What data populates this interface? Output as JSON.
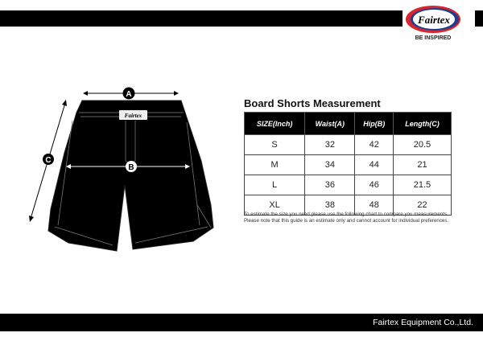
{
  "brand": {
    "logo_text": "Fairtex",
    "tagline": "BE INSPIRED",
    "colors": {
      "red": "#d7262e",
      "blue": "#1f3d8f"
    }
  },
  "diagram": {
    "labels": [
      "A",
      "B",
      "C"
    ],
    "waistband_logo": "Fairtex"
  },
  "chart_title": "Board Shorts Measurement",
  "table": {
    "headers": [
      "SIZE(Inch)",
      "Waist(A)",
      "Hip(B)",
      "Length(C)"
    ],
    "rows": [
      [
        "S",
        "32",
        "42",
        "20.5"
      ],
      [
        "M",
        "34",
        "44",
        "21"
      ],
      [
        "L",
        "36",
        "46",
        "21.5"
      ],
      [
        "XL",
        "38",
        "48",
        "22"
      ]
    ]
  },
  "note": [
    "To estimate the size you need please use the following chart to compare you measurements.",
    "Please note that this guide is an estimate only and cannot account for individual preferences."
  ],
  "footer": "Fairtex Equipment Co.,Ltd."
}
